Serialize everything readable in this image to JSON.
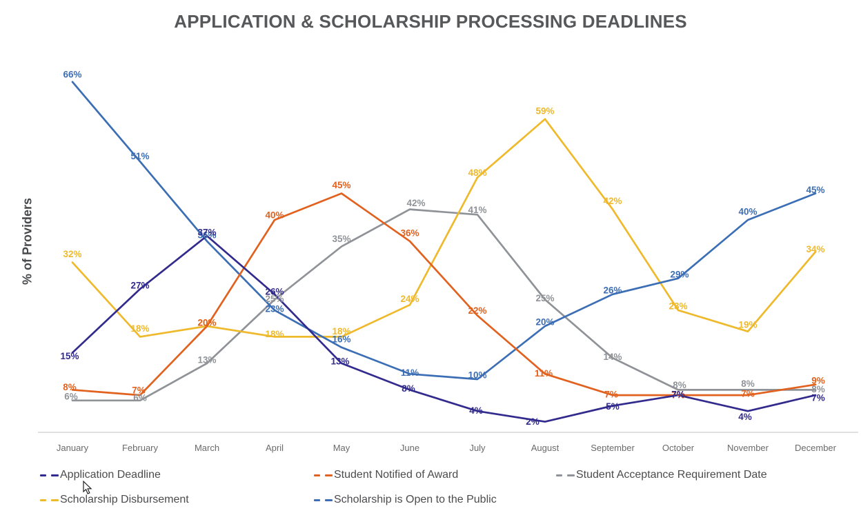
{
  "title": "APPLICATION & SCHOLARSHIP PROCESSING DEADLINES",
  "y_axis_label": "% of Providers",
  "chart_data": {
    "type": "line",
    "title": "APPLICATION & SCHOLARSHIP PROCESSING DEADLINES",
    "xlabel": "",
    "ylabel": "% of Providers",
    "ylim": [
      0,
      70
    ],
    "grid": false,
    "legend_position": "bottom",
    "data_label_format": "percent",
    "categories": [
      "January",
      "February",
      "March",
      "April",
      "May",
      "June",
      "July",
      "August",
      "September",
      "October",
      "November",
      "December"
    ],
    "series": [
      {
        "name": "Application Deadline",
        "color": "#322B8D",
        "values": [
          15,
          27,
          37,
          26,
          13,
          8,
          4,
          2,
          5,
          7,
          4,
          7
        ]
      },
      {
        "name": "Student Notified of Award",
        "color": "#E1611E",
        "values": [
          8,
          7,
          20,
          40,
          45,
          36,
          22,
          11,
          7,
          7,
          7,
          9
        ]
      },
      {
        "name": "Student Acceptance Requirement Date",
        "color": "#8F9397",
        "values": [
          6,
          6,
          13,
          25,
          35,
          42,
          41,
          25,
          14,
          8,
          8,
          8
        ]
      },
      {
        "name": "Scholarship Disbursement",
        "color": "#EFB92C",
        "values": [
          32,
          18,
          20,
          18,
          18,
          24,
          48,
          59,
          42,
          23,
          19,
          34
        ]
      },
      {
        "name": "Scholarship is Open to the Public",
        "color": "#3C6EB5",
        "values": [
          66,
          51,
          36,
          23,
          16,
          11,
          10,
          20,
          26,
          29,
          40,
          45
        ]
      }
    ],
    "legend_rows": [
      [
        "Application Deadline",
        "Student Notified of Award",
        "Student Acceptance Requirement Date"
      ],
      [
        "Scholarship Disbursement",
        "Scholarship is Open to the Public"
      ]
    ]
  }
}
